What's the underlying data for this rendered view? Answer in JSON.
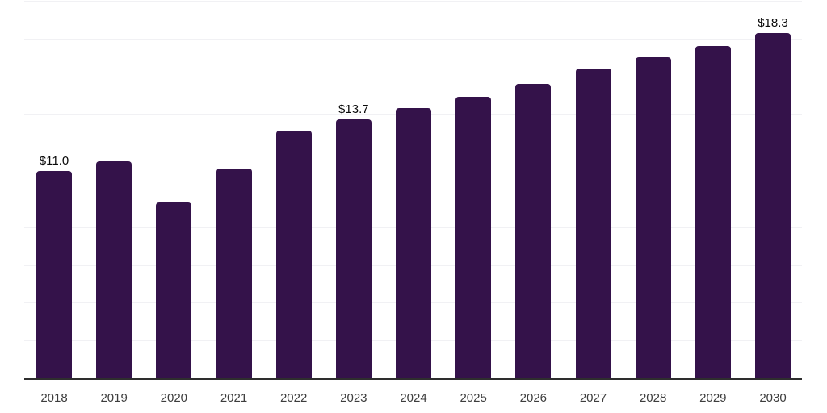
{
  "chart_data": {
    "type": "bar",
    "title": "",
    "xlabel": "",
    "ylabel": "",
    "categories": [
      "2018",
      "2019",
      "2020",
      "2021",
      "2022",
      "2023",
      "2024",
      "2025",
      "2026",
      "2027",
      "2028",
      "2029",
      "2030"
    ],
    "values": [
      11.0,
      11.5,
      9.3,
      11.1,
      13.1,
      13.7,
      14.3,
      14.9,
      15.6,
      16.4,
      17.0,
      17.6,
      18.3
    ],
    "data_labels": [
      "$11.0",
      null,
      null,
      null,
      null,
      "$13.7",
      null,
      null,
      null,
      null,
      null,
      null,
      "$18.3"
    ],
    "unit_prefix": "$",
    "ylim": [
      0,
      20
    ],
    "gridline_step": 2,
    "grid": "horizontal",
    "legend": "none",
    "y_axis_tick_labels": "none",
    "colors": {
      "bar": "#34124a",
      "gridline": "#f1f1f4",
      "axis_line": "#2e2e2e",
      "data_label": "#0a0a0a",
      "tick_label": "#3d3d3d",
      "background": "#ffffff"
    }
  }
}
